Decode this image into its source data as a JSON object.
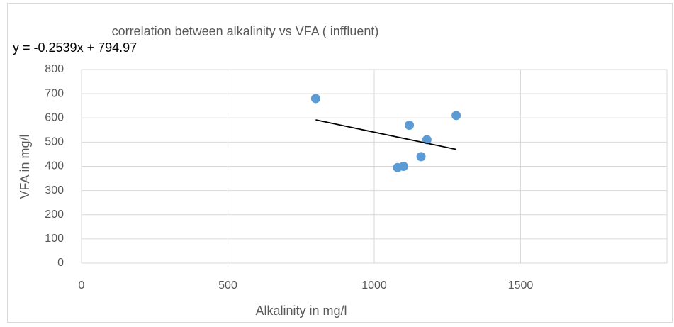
{
  "chart_data": {
    "type": "scatter",
    "title": "correlation between alkalinity vs VFA ( inffluent)",
    "x_label": "Alkalinity in mg/l",
    "y_label": "VFA in mg/l",
    "series": [
      {
        "color": "#5b9bd5",
        "x": [
          800,
          1080,
          1100,
          1120,
          1160,
          1180,
          1280
        ],
        "values": [
          680,
          395,
          400,
          570,
          440,
          510,
          610
        ]
      }
    ],
    "trendline": {
      "equation": "y = -0.2539x + 794.97",
      "slope": -0.2539,
      "intercept": 794.97,
      "color": "#000000"
    },
    "xlim": [
      0,
      2000
    ],
    "xticks": [
      0,
      500,
      1000,
      1500
    ],
    "ylim": [
      0,
      800
    ],
    "yticks": [
      0,
      100,
      200,
      300,
      400,
      500,
      600,
      700,
      800
    ],
    "grid": true
  }
}
